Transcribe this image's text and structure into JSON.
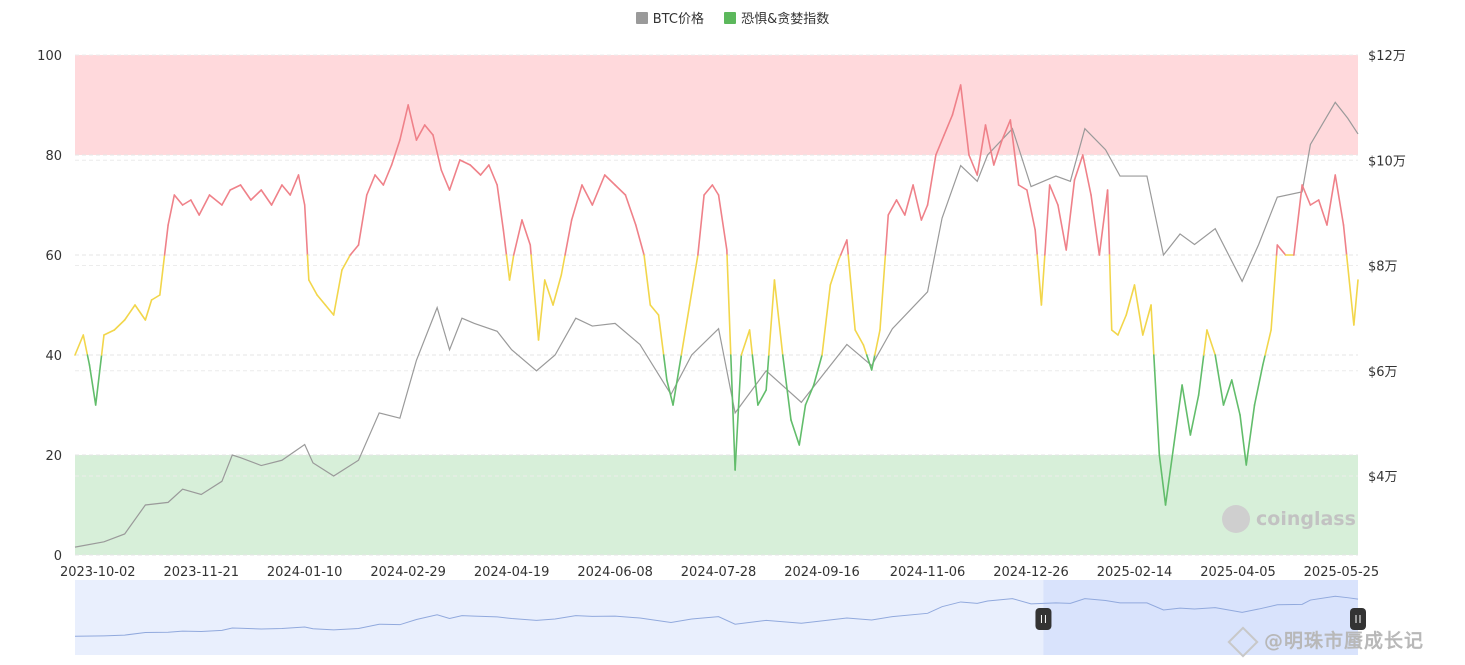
{
  "legend": {
    "btc_label": "BTC价格",
    "btc_color": "#999999",
    "fng_label": "恐惧&贪婪指数",
    "fng_color": "#5cb85c"
  },
  "brand": "coinglass",
  "watermark": "@明珠市蜃成长记",
  "colors": {
    "greed_zone": "#ffd9dc",
    "fear_zone": "#d7efd9",
    "greed_line": "#ef8189",
    "neutral_line": "#f2d64b",
    "fear_line": "#62bd6b",
    "btc_line": "#9a9a9a",
    "navigator_fill": "#e9effd",
    "navigator_window": "#d9e3fc",
    "navigator_line": "#91a9dd"
  },
  "chart_data": {
    "type": "line",
    "x_ticks": [
      "2023-10-02",
      "2023-11-21",
      "2024-01-10",
      "2024-02-29",
      "2024-04-19",
      "2024-06-08",
      "2024-07-28",
      "2024-09-16",
      "2024-11-06",
      "2024-12-26",
      "2025-02-14",
      "2025-04-05",
      "2025-05-25"
    ],
    "y_left": {
      "ticks": [
        "0",
        "20",
        "40",
        "60",
        "80",
        "100"
      ],
      "range": [
        0,
        100
      ]
    },
    "y_right": {
      "ticks": [
        "$4万",
        "$6万",
        "$8万",
        "$10万",
        "$12万"
      ],
      "range": [
        2.5,
        12
      ]
    },
    "zones": [
      {
        "name": "greed",
        "from": 80,
        "to": 100
      },
      {
        "name": "fear",
        "from": 0,
        "to": 20
      }
    ],
    "thresholds": {
      "fear_below": 40,
      "greed_above": 60
    },
    "x_range": [
      "2023-09-21",
      "2025-06-02"
    ],
    "series": [
      {
        "name": "恐惧&贪婪指数",
        "points": [
          [
            "2023-09-21",
            40
          ],
          [
            "2023-09-25",
            44
          ],
          [
            "2023-09-28",
            38
          ],
          [
            "2023-10-01",
            30
          ],
          [
            "2023-10-05",
            44
          ],
          [
            "2023-10-10",
            45
          ],
          [
            "2023-10-15",
            47
          ],
          [
            "2023-10-20",
            50
          ],
          [
            "2023-10-25",
            47
          ],
          [
            "2023-10-28",
            51
          ],
          [
            "2023-11-01",
            52
          ],
          [
            "2023-11-05",
            66
          ],
          [
            "2023-11-08",
            72
          ],
          [
            "2023-11-12",
            70
          ],
          [
            "2023-11-16",
            71
          ],
          [
            "2023-11-20",
            68
          ],
          [
            "2023-11-25",
            72
          ],
          [
            "2023-12-01",
            70
          ],
          [
            "2023-12-05",
            73
          ],
          [
            "2023-12-10",
            74
          ],
          [
            "2023-12-15",
            71
          ],
          [
            "2023-12-20",
            73
          ],
          [
            "2023-12-25",
            70
          ],
          [
            "2023-12-30",
            74
          ],
          [
            "2024-01-03",
            72
          ],
          [
            "2024-01-07",
            76
          ],
          [
            "2024-01-10",
            70
          ],
          [
            "2024-01-12",
            55
          ],
          [
            "2024-01-16",
            52
          ],
          [
            "2024-01-20",
            50
          ],
          [
            "2024-01-24",
            48
          ],
          [
            "2024-01-28",
            57
          ],
          [
            "2024-02-01",
            60
          ],
          [
            "2024-02-05",
            62
          ],
          [
            "2024-02-09",
            72
          ],
          [
            "2024-02-13",
            76
          ],
          [
            "2024-02-17",
            74
          ],
          [
            "2024-02-21",
            78
          ],
          [
            "2024-02-25",
            83
          ],
          [
            "2024-02-29",
            90
          ],
          [
            "2024-03-04",
            83
          ],
          [
            "2024-03-08",
            86
          ],
          [
            "2024-03-12",
            84
          ],
          [
            "2024-03-16",
            77
          ],
          [
            "2024-03-20",
            73
          ],
          [
            "2024-03-25",
            79
          ],
          [
            "2024-03-30",
            78
          ],
          [
            "2024-04-04",
            76
          ],
          [
            "2024-04-08",
            78
          ],
          [
            "2024-04-12",
            74
          ],
          [
            "2024-04-15",
            65
          ],
          [
            "2024-04-18",
            55
          ],
          [
            "2024-04-20",
            60
          ],
          [
            "2024-04-24",
            67
          ],
          [
            "2024-04-28",
            62
          ],
          [
            "2024-05-02",
            43
          ],
          [
            "2024-05-05",
            55
          ],
          [
            "2024-05-09",
            50
          ],
          [
            "2024-05-13",
            56
          ],
          [
            "2024-05-18",
            67
          ],
          [
            "2024-05-23",
            74
          ],
          [
            "2024-05-28",
            70
          ],
          [
            "2024-06-03",
            76
          ],
          [
            "2024-06-08",
            74
          ],
          [
            "2024-06-13",
            72
          ],
          [
            "2024-06-18",
            66
          ],
          [
            "2024-06-22",
            60
          ],
          [
            "2024-06-25",
            50
          ],
          [
            "2024-06-29",
            48
          ],
          [
            "2024-07-03",
            35
          ],
          [
            "2024-07-06",
            30
          ],
          [
            "2024-07-10",
            40
          ],
          [
            "2024-07-14",
            50
          ],
          [
            "2024-07-18",
            60
          ],
          [
            "2024-07-21",
            72
          ],
          [
            "2024-07-25",
            74
          ],
          [
            "2024-07-28",
            72
          ],
          [
            "2024-08-01",
            61
          ],
          [
            "2024-08-05",
            17
          ],
          [
            "2024-08-08",
            40
          ],
          [
            "2024-08-12",
            45
          ],
          [
            "2024-08-16",
            30
          ],
          [
            "2024-08-20",
            33
          ],
          [
            "2024-08-24",
            55
          ],
          [
            "2024-08-28",
            40
          ],
          [
            "2024-09-01",
            27
          ],
          [
            "2024-09-05",
            22
          ],
          [
            "2024-09-08",
            30
          ],
          [
            "2024-09-12",
            34
          ],
          [
            "2024-09-16",
            40
          ],
          [
            "2024-09-20",
            54
          ],
          [
            "2024-09-24",
            59
          ],
          [
            "2024-09-28",
            63
          ],
          [
            "2024-10-02",
            45
          ],
          [
            "2024-10-06",
            42
          ],
          [
            "2024-10-10",
            37
          ],
          [
            "2024-10-14",
            45
          ],
          [
            "2024-10-18",
            68
          ],
          [
            "2024-10-22",
            71
          ],
          [
            "2024-10-26",
            68
          ],
          [
            "2024-10-30",
            74
          ],
          [
            "2024-11-03",
            67
          ],
          [
            "2024-11-06",
            70
          ],
          [
            "2024-11-10",
            80
          ],
          [
            "2024-11-14",
            84
          ],
          [
            "2024-11-18",
            88
          ],
          [
            "2024-11-22",
            94
          ],
          [
            "2024-11-26",
            80
          ],
          [
            "2024-11-30",
            76
          ],
          [
            "2024-12-04",
            86
          ],
          [
            "2024-12-08",
            78
          ],
          [
            "2024-12-12",
            83
          ],
          [
            "2024-12-16",
            87
          ],
          [
            "2024-12-20",
            74
          ],
          [
            "2024-12-24",
            73
          ],
          [
            "2024-12-28",
            65
          ],
          [
            "2024-12-31",
            50
          ],
          [
            "2025-01-04",
            74
          ],
          [
            "2025-01-08",
            70
          ],
          [
            "2025-01-12",
            61
          ],
          [
            "2025-01-16",
            75
          ],
          [
            "2025-01-20",
            80
          ],
          [
            "2025-01-24",
            72
          ],
          [
            "2025-01-28",
            60
          ],
          [
            "2025-02-01",
            73
          ],
          [
            "2025-02-03",
            45
          ],
          [
            "2025-02-06",
            44
          ],
          [
            "2025-02-10",
            48
          ],
          [
            "2025-02-14",
            54
          ],
          [
            "2025-02-18",
            44
          ],
          [
            "2025-02-22",
            50
          ],
          [
            "2025-02-26",
            20
          ],
          [
            "2025-03-01",
            10
          ],
          [
            "2025-03-05",
            22
          ],
          [
            "2025-03-09",
            34
          ],
          [
            "2025-03-13",
            24
          ],
          [
            "2025-03-17",
            32
          ],
          [
            "2025-03-21",
            45
          ],
          [
            "2025-03-25",
            40
          ],
          [
            "2025-03-29",
            30
          ],
          [
            "2025-04-02",
            35
          ],
          [
            "2025-04-06",
            28
          ],
          [
            "2025-04-09",
            18
          ],
          [
            "2025-04-13",
            30
          ],
          [
            "2025-04-17",
            38
          ],
          [
            "2025-04-21",
            45
          ],
          [
            "2025-04-24",
            62
          ],
          [
            "2025-04-28",
            60
          ],
          [
            "2025-05-02",
            60
          ],
          [
            "2025-05-06",
            74
          ],
          [
            "2025-05-10",
            70
          ],
          [
            "2025-05-14",
            71
          ],
          [
            "2025-05-18",
            66
          ],
          [
            "2025-05-22",
            76
          ],
          [
            "2025-05-26",
            66
          ],
          [
            "2025-05-28",
            58
          ],
          [
            "2025-05-31",
            46
          ],
          [
            "2025-06-02",
            55
          ]
        ]
      },
      {
        "name": "BTC价格",
        "points": [
          [
            "2023-09-21",
            2.65
          ],
          [
            "2023-10-05",
            2.75
          ],
          [
            "2023-10-15",
            2.9
          ],
          [
            "2023-10-25",
            3.45
          ],
          [
            "2023-11-05",
            3.5
          ],
          [
            "2023-11-12",
            3.75
          ],
          [
            "2023-11-21",
            3.65
          ],
          [
            "2023-12-01",
            3.9
          ],
          [
            "2023-12-06",
            4.4
          ],
          [
            "2023-12-10",
            4.35
          ],
          [
            "2023-12-20",
            4.2
          ],
          [
            "2023-12-30",
            4.3
          ],
          [
            "2024-01-10",
            4.6
          ],
          [
            "2024-01-14",
            4.25
          ],
          [
            "2024-01-24",
            4.0
          ],
          [
            "2024-02-05",
            4.3
          ],
          [
            "2024-02-15",
            5.2
          ],
          [
            "2024-02-25",
            5.1
          ],
          [
            "2024-03-04",
            6.2
          ],
          [
            "2024-03-14",
            7.2
          ],
          [
            "2024-03-20",
            6.4
          ],
          [
            "2024-03-26",
            7.0
          ],
          [
            "2024-04-01",
            6.9
          ],
          [
            "2024-04-12",
            6.75
          ],
          [
            "2024-04-19",
            6.4
          ],
          [
            "2024-05-01",
            6.0
          ],
          [
            "2024-05-10",
            6.3
          ],
          [
            "2024-05-20",
            7.0
          ],
          [
            "2024-05-28",
            6.85
          ],
          [
            "2024-06-08",
            6.9
          ],
          [
            "2024-06-20",
            6.5
          ],
          [
            "2024-07-05",
            5.55
          ],
          [
            "2024-07-15",
            6.3
          ],
          [
            "2024-07-28",
            6.8
          ],
          [
            "2024-08-05",
            5.2
          ],
          [
            "2024-08-20",
            6.0
          ],
          [
            "2024-09-06",
            5.4
          ],
          [
            "2024-09-16",
            5.9
          ],
          [
            "2024-09-28",
            6.5
          ],
          [
            "2024-10-10",
            6.1
          ],
          [
            "2024-10-20",
            6.8
          ],
          [
            "2024-11-06",
            7.5
          ],
          [
            "2024-11-13",
            8.9
          ],
          [
            "2024-11-22",
            9.9
          ],
          [
            "2024-11-30",
            9.6
          ],
          [
            "2024-12-05",
            10.1
          ],
          [
            "2024-12-17",
            10.6
          ],
          [
            "2024-12-26",
            9.5
          ],
          [
            "2025-01-07",
            9.7
          ],
          [
            "2025-01-14",
            9.6
          ],
          [
            "2025-01-21",
            10.6
          ],
          [
            "2025-01-31",
            10.2
          ],
          [
            "2025-02-07",
            9.7
          ],
          [
            "2025-02-20",
            9.7
          ],
          [
            "2025-02-28",
            8.2
          ],
          [
            "2025-03-08",
            8.6
          ],
          [
            "2025-03-15",
            8.4
          ],
          [
            "2025-03-25",
            8.7
          ],
          [
            "2025-04-07",
            7.7
          ],
          [
            "2025-04-15",
            8.4
          ],
          [
            "2025-04-24",
            9.3
          ],
          [
            "2025-05-06",
            9.4
          ],
          [
            "2025-05-10",
            10.3
          ],
          [
            "2025-05-22",
            11.1
          ],
          [
            "2025-05-28",
            10.8
          ],
          [
            "2025-06-02",
            10.5
          ]
        ]
      }
    ]
  }
}
